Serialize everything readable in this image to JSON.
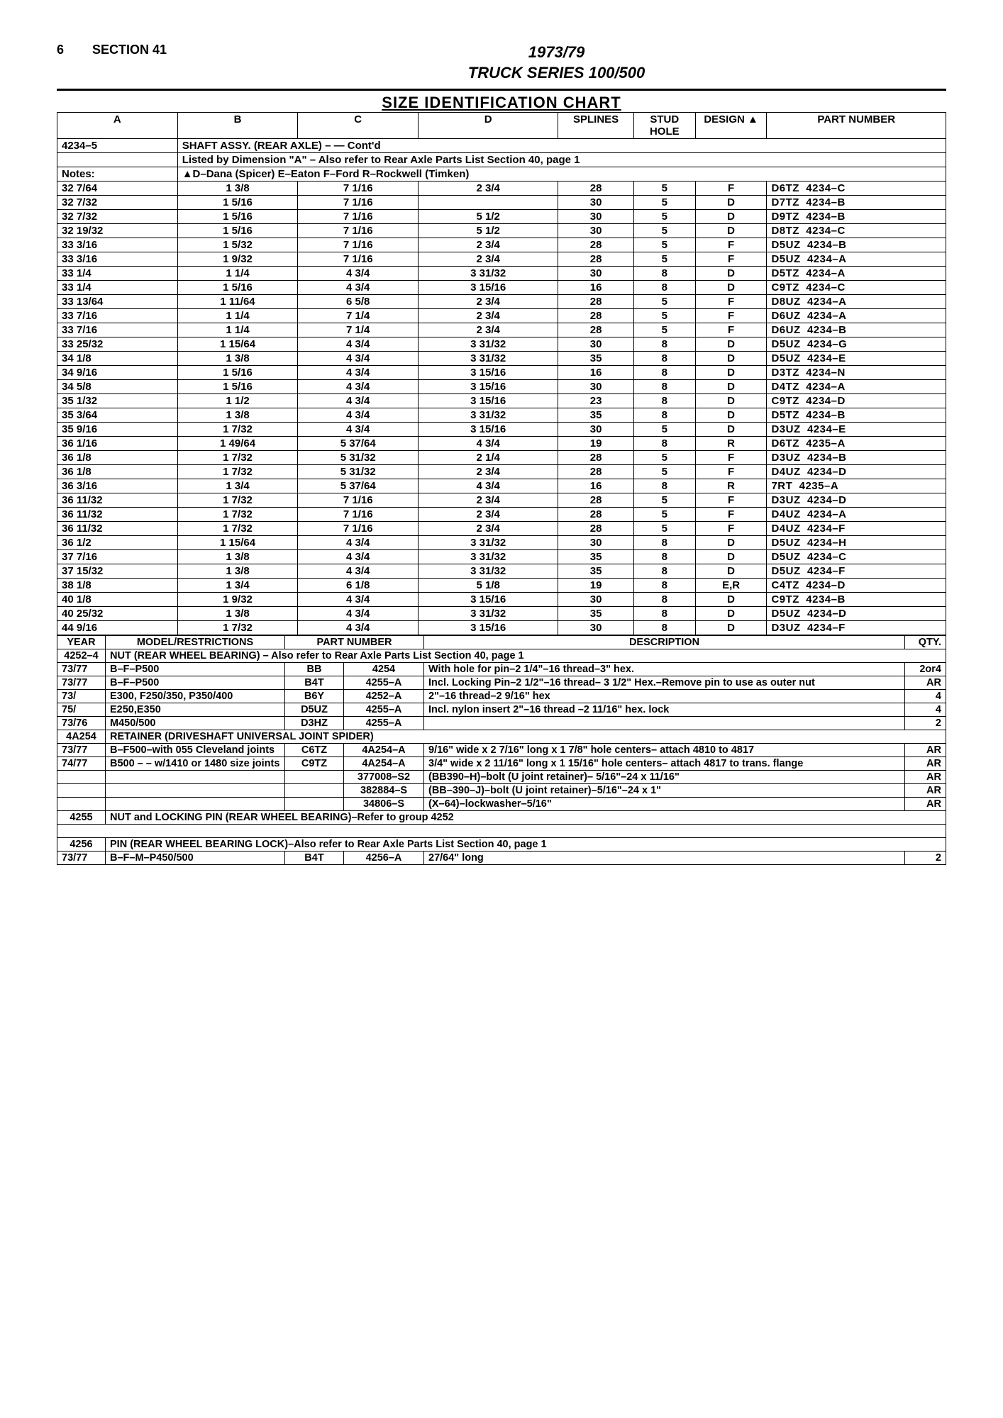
{
  "header": {
    "page_num": "6",
    "section": "SECTION 41",
    "title_line1": "1973/79",
    "title_line2": "TRUCK SERIES 100/500"
  },
  "chart_title": "SIZE IDENTIFICATION CHART",
  "size_table": {
    "headers": [
      "A",
      "B",
      "C",
      "D",
      "SPLINES",
      "STUD HOLE",
      "DESIGN ▲",
      "PART NUMBER"
    ],
    "group_code": "4234–5",
    "group_title": "SHAFT ASSY. (REAR AXLE) – — Cont'd",
    "listed_by": "Listed by Dimension \"A\" – Also refer to Rear Axle Parts List Section 40, page 1",
    "notes_label": "Notes:",
    "notes_text": "▲D–Dana (Spicer) E–Eaton F–Ford R–Rockwell (Timken)",
    "rows": [
      [
        "32 7/64",
        "1 3/8",
        "7 1/16",
        "2 3/4",
        "28",
        "5",
        "F",
        "D6TZ",
        "4234–C"
      ],
      [
        "32 7/32",
        "1 5/16",
        "7 1/16",
        "",
        "30",
        "5",
        "D",
        "D7TZ",
        "4234–B"
      ],
      [
        "32 7/32",
        "1 5/16",
        "7 1/16",
        "5 1/2",
        "30",
        "5",
        "D",
        "D9TZ",
        "4234–B"
      ],
      [
        "32 19/32",
        "1 5/16",
        "7 1/16",
        "5 1/2",
        "30",
        "5",
        "D",
        "D8TZ",
        "4234–C"
      ],
      [
        "33 3/16",
        "1 5/32",
        "7 1/16",
        "2 3/4",
        "28",
        "5",
        "F",
        "D5UZ",
        "4234–B"
      ],
      [
        "33 3/16",
        "1 9/32",
        "7 1/16",
        "2 3/4",
        "28",
        "5",
        "F",
        "D5UZ",
        "4234–A"
      ],
      [
        "33 1/4",
        "1 1/4",
        "4 3/4",
        "3 31/32",
        "30",
        "8",
        "D",
        "D5TZ",
        "4234–A"
      ],
      [
        "33 1/4",
        "1 5/16",
        "4 3/4",
        "3 15/16",
        "16",
        "8",
        "D",
        "C9TZ",
        "4234–C"
      ],
      [
        "33 13/64",
        "1 11/64",
        "6 5/8",
        "2 3/4",
        "28",
        "5",
        "F",
        "D8UZ",
        "4234–A"
      ],
      [
        "33 7/16",
        "1 1/4",
        "7 1/4",
        "2 3/4",
        "28",
        "5",
        "F",
        "D6UZ",
        "4234–A"
      ],
      [
        "33 7/16",
        "1 1/4",
        "7 1/4",
        "2 3/4",
        "28",
        "5",
        "F",
        "D6UZ",
        "4234–B"
      ],
      [
        "33 25/32",
        "1 15/64",
        "4 3/4",
        "3 31/32",
        "30",
        "8",
        "D",
        "D5UZ",
        "4234–G"
      ],
      [
        "34 1/8",
        "1 3/8",
        "4 3/4",
        "3 31/32",
        "35",
        "8",
        "D",
        "D5UZ",
        "4234–E"
      ],
      [
        "34 9/16",
        "1 5/16",
        "4 3/4",
        "3 15/16",
        "16",
        "8",
        "D",
        "D3TZ",
        "4234–N"
      ],
      [
        "34 5/8",
        "1 5/16",
        "4 3/4",
        "3 15/16",
        "30",
        "8",
        "D",
        "D4TZ",
        "4234–A"
      ],
      [
        "35 1/32",
        "1 1/2",
        "4 3/4",
        "3 15/16",
        "23",
        "8",
        "D",
        "C9TZ",
        "4234–D"
      ],
      [
        "35 3/64",
        "1 3/8",
        "4 3/4",
        "3 31/32",
        "35",
        "8",
        "D",
        "D5TZ",
        "4234–B"
      ],
      [
        "35 9/16",
        "1 7/32",
        "4 3/4",
        "3 15/16",
        "30",
        "5",
        "D",
        "D3UZ",
        "4234–E"
      ],
      [
        "36 1/16",
        "1 49/64",
        "5 37/64",
        "4 3/4",
        "19",
        "8",
        "R",
        "D6TZ",
        "4235–A"
      ],
      [
        "36 1/8",
        "1 7/32",
        "5 31/32",
        "2 1/4",
        "28",
        "5",
        "F",
        "D3UZ",
        "4234–B"
      ],
      [
        "36 1/8",
        "1 7/32",
        "5 31/32",
        "2 3/4",
        "28",
        "5",
        "F",
        "D4UZ",
        "4234–D"
      ],
      [
        "36 3/16",
        "1 3/4",
        "5 37/64",
        "4 3/4",
        "16",
        "8",
        "R",
        "7RT",
        "4235–A"
      ],
      [
        "36 11/32",
        "1 7/32",
        "7 1/16",
        "2 3/4",
        "28",
        "5",
        "F",
        "D3UZ",
        "4234–D"
      ],
      [
        "36 11/32",
        "1 7/32",
        "7 1/16",
        "2 3/4",
        "28",
        "5",
        "F",
        "D4UZ",
        "4234–A"
      ],
      [
        "36 11/32",
        "1 7/32",
        "7 1/16",
        "2 3/4",
        "28",
        "5",
        "F",
        "D4UZ",
        "4234–F"
      ],
      [
        "36 1/2",
        "1 15/64",
        "4 3/4",
        "3 31/32",
        "30",
        "8",
        "D",
        "D5UZ",
        "4234–H"
      ],
      [
        "37 7/16",
        "1 3/8",
        "4 3/4",
        "3 31/32",
        "35",
        "8",
        "D",
        "D5UZ",
        "4234–C"
      ],
      [
        "37 15/32",
        "1 3/8",
        "4 3/4",
        "3 31/32",
        "35",
        "8",
        "D",
        "D5UZ",
        "4234–F"
      ],
      [
        "38 1/8",
        "1 3/4",
        "6 1/8",
        "5 1/8",
        "19",
        "8",
        "E,R",
        "C4TZ",
        "4234–D"
      ],
      [
        "40 1/8",
        "1 9/32",
        "4 3/4",
        "3 15/16",
        "30",
        "8",
        "D",
        "C9TZ",
        "4234–B"
      ],
      [
        "40 25/32",
        "1 3/8",
        "4 3/4",
        "3 31/32",
        "35",
        "8",
        "D",
        "D5UZ",
        "4234–D"
      ],
      [
        "44 9/16",
        "1 7/32",
        "4 3/4",
        "3 15/16",
        "30",
        "8",
        "D",
        "D3UZ",
        "4234–F"
      ]
    ]
  },
  "lower_table": {
    "headers": [
      "YEAR",
      "MODEL/RESTRICTIONS",
      "PART NUMBER",
      "DESCRIPTION",
      "QTY."
    ],
    "sections": [
      {
        "code": "4252–4",
        "title": "NUT (REAR WHEEL BEARING) – Also refer to Rear Axle Parts List Section 40, page 1",
        "rows": [
          {
            "year": "73/77",
            "model": "B–F–P500",
            "pna": "BB",
            "pnb": "4254",
            "desc": "With hole for pin–2 1/4\"–16 thread–3\" hex.",
            "qty": "2or4"
          },
          {
            "year": "73/77",
            "model": "B–F–P500",
            "pna": "B4T",
            "pnb": "4255–A",
            "desc": "Incl. Locking Pin–2 1/2\"–16 thread– 3 1/2\" Hex.–Remove pin to use as outer nut",
            "qty": "AR"
          },
          {
            "year": "73/",
            "model": "E300, F250/350, P350/400",
            "pna": "B6Y",
            "pnb": "4252–A",
            "desc": "2\"–16 thread–2 9/16\" hex",
            "qty": "4"
          },
          {
            "year": "75/",
            "model": "E250,E350",
            "pna": "D5UZ",
            "pnb": "4255–A",
            "desc": "Incl. nylon insert 2\"–16 thread –2 11/16\" hex. lock",
            "qty": "4"
          },
          {
            "year": "73/76",
            "model": "M450/500",
            "pna": "D3HZ",
            "pnb": "4255–A",
            "desc": "",
            "qty": "2"
          }
        ]
      },
      {
        "code": "4A254",
        "title": "RETAINER (DRIVESHAFT UNIVERSAL JOINT SPIDER)",
        "rows": [
          {
            "year": "73/77",
            "model": "B–F500–with 055 Cleveland joints",
            "pna": "C6TZ",
            "pnb": "4A254–A",
            "desc": "9/16\" wide x 2 7/16\" long x 1 7/8\" hole centers– attach 4810 to 4817",
            "qty": "AR"
          },
          {
            "year": "74/77",
            "model": "B500 – – w/1410 or 1480 size joints",
            "pna": "C9TZ",
            "pnb": "4A254–A",
            "desc": "3/4\" wide x 2 11/16\" long x 1 15/16\" hole centers– attach 4817 to trans. flange",
            "qty": "AR"
          },
          {
            "year": "",
            "model": "",
            "pna": "",
            "pnb": "377008–S2",
            "desc": "(BB390–H)–bolt (U joint retainer)– 5/16\"–24 x 11/16\"",
            "qty": "AR"
          },
          {
            "year": "",
            "model": "",
            "pna": "",
            "pnb": "382884–S",
            "desc": "(BB–390–J)–bolt (U joint retainer)–5/16\"–24 x 1\"",
            "qty": "AR"
          },
          {
            "year": "",
            "model": "",
            "pna": "",
            "pnb": "34806–S",
            "desc": "(X–64)–lockwasher–5/16\"",
            "qty": "AR"
          }
        ]
      },
      {
        "code": "4255",
        "title": "NUT and LOCKING PIN (REAR WHEEL BEARING)–Refer to group 4252",
        "rows": []
      },
      {
        "code": "4256",
        "title": "PIN (REAR WHEEL BEARING LOCK)–Also refer to Rear Axle Parts List Section 40, page 1",
        "rows": [
          {
            "year": "73/77",
            "model": "B–F–M–P450/500",
            "pna": "B4T",
            "pnb": "4256–A",
            "desc": "27/64\" long",
            "qty": "2"
          }
        ]
      }
    ]
  }
}
